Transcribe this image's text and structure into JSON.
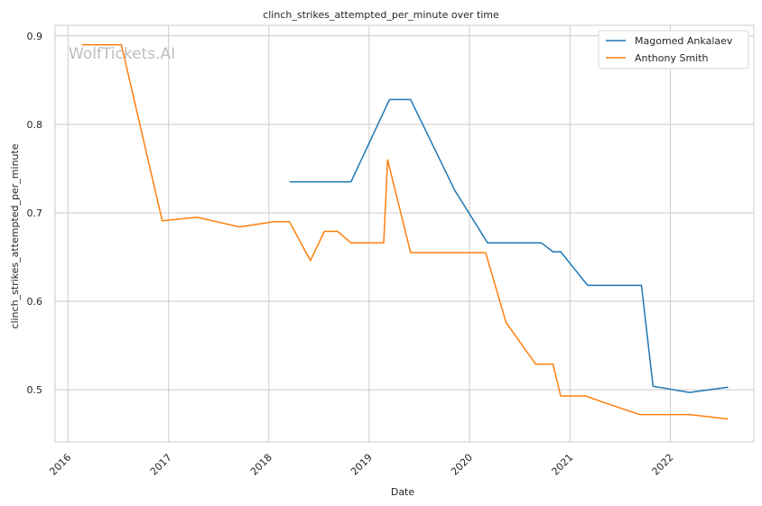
{
  "watermark": "WolfTickets.AI",
  "chart_data": {
    "type": "line",
    "title": "clinch_strikes_attempted_per_minute over time",
    "xlabel": "Date",
    "ylabel": "clinch_strikes_attempted_per_minute",
    "x_ticks": [
      "2016",
      "2017",
      "2018",
      "2019",
      "2020",
      "2021",
      "2022"
    ],
    "y_ticks": [
      "0.5",
      "0.6",
      "0.7",
      "0.8",
      "0.9"
    ],
    "xlim": [
      "2015-11-15",
      "2022-11-01"
    ],
    "ylim": [
      0.441,
      0.912
    ],
    "grid": true,
    "legend_position": "top-right",
    "series": [
      {
        "name": "Magomed Ankalaev",
        "color": "#1f77b4",
        "points": [
          [
            "2018-03-17",
            0.735
          ],
          [
            "2018-10-27",
            0.735
          ],
          [
            "2019-03-16",
            0.828
          ],
          [
            "2019-06-01",
            0.828
          ],
          [
            "2019-11-09",
            0.725
          ],
          [
            "2020-03-07",
            0.666
          ],
          [
            "2020-09-19",
            0.666
          ],
          [
            "2020-10-31",
            0.656
          ],
          [
            "2020-11-28",
            0.656
          ],
          [
            "2021-03-06",
            0.618
          ],
          [
            "2021-09-18",
            0.618
          ],
          [
            "2021-10-30",
            0.504
          ],
          [
            "2022-03-12",
            0.497
          ],
          [
            "2022-07-30",
            0.503
          ]
        ]
      },
      {
        "name": "Anthony Smith",
        "color": "#ff7f0e",
        "points": [
          [
            "2016-02-21",
            0.89
          ],
          [
            "2016-07-13",
            0.89
          ],
          [
            "2016-12-09",
            0.691
          ],
          [
            "2017-04-15",
            0.695
          ],
          [
            "2017-09-16",
            0.684
          ],
          [
            "2018-01-20",
            0.69
          ],
          [
            "2018-03-17",
            0.69
          ],
          [
            "2018-06-01",
            0.646
          ],
          [
            "2018-07-22",
            0.679
          ],
          [
            "2018-09-08",
            0.679
          ],
          [
            "2018-10-27",
            0.666
          ],
          [
            "2019-02-23",
            0.666
          ],
          [
            "2019-03-09",
            0.76
          ],
          [
            "2019-06-01",
            0.655
          ],
          [
            "2020-02-29",
            0.655
          ],
          [
            "2020-05-13",
            0.576
          ],
          [
            "2020-08-29",
            0.529
          ],
          [
            "2020-10-31",
            0.529
          ],
          [
            "2020-11-28",
            0.493
          ],
          [
            "2021-02-27",
            0.493
          ],
          [
            "2021-05-01",
            0.486
          ],
          [
            "2021-09-11",
            0.472
          ],
          [
            "2022-03-12",
            0.472
          ],
          [
            "2022-07-30",
            0.467
          ]
        ]
      }
    ]
  }
}
